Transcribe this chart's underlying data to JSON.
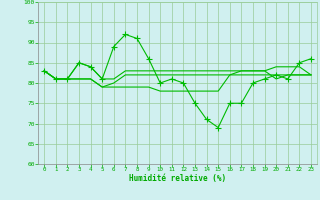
{
  "x": [
    0,
    1,
    2,
    3,
    4,
    5,
    6,
    7,
    8,
    9,
    10,
    11,
    12,
    13,
    14,
    15,
    16,
    17,
    18,
    19,
    20,
    21,
    22,
    23
  ],
  "line1": [
    83,
    81,
    81,
    85,
    84,
    81,
    89,
    92,
    91,
    86,
    80,
    81,
    80,
    75,
    71,
    69,
    75,
    75,
    80,
    81,
    82,
    81,
    85,
    86
  ],
  "line2": [
    83,
    81,
    81,
    85,
    84,
    81,
    81,
    83,
    83,
    83,
    83,
    83,
    83,
    83,
    83,
    83,
    83,
    83,
    83,
    83,
    84,
    84,
    84,
    82
  ],
  "line3": [
    83,
    81,
    81,
    81,
    81,
    79,
    79,
    79,
    79,
    79,
    78,
    78,
    78,
    78,
    78,
    78,
    82,
    83,
    83,
    83,
    81,
    82,
    82,
    82
  ],
  "line4": [
    83,
    81,
    81,
    81,
    81,
    79,
    80,
    82,
    82,
    82,
    82,
    82,
    82,
    82,
    82,
    82,
    82,
    82,
    82,
    82,
    82,
    82,
    82,
    82
  ],
  "line_color": "#00bb00",
  "bg_color": "#d0f0f0",
  "grid_color": "#99cc99",
  "xlabel": "Humidité relative (%)",
  "xlabel_color": "#00aa00",
  "tick_color": "#00aa00",
  "ylim": [
    60,
    100
  ],
  "yticks": [
    60,
    65,
    70,
    75,
    80,
    85,
    90,
    95,
    100
  ],
  "xlim": [
    -0.5,
    23.5
  ]
}
